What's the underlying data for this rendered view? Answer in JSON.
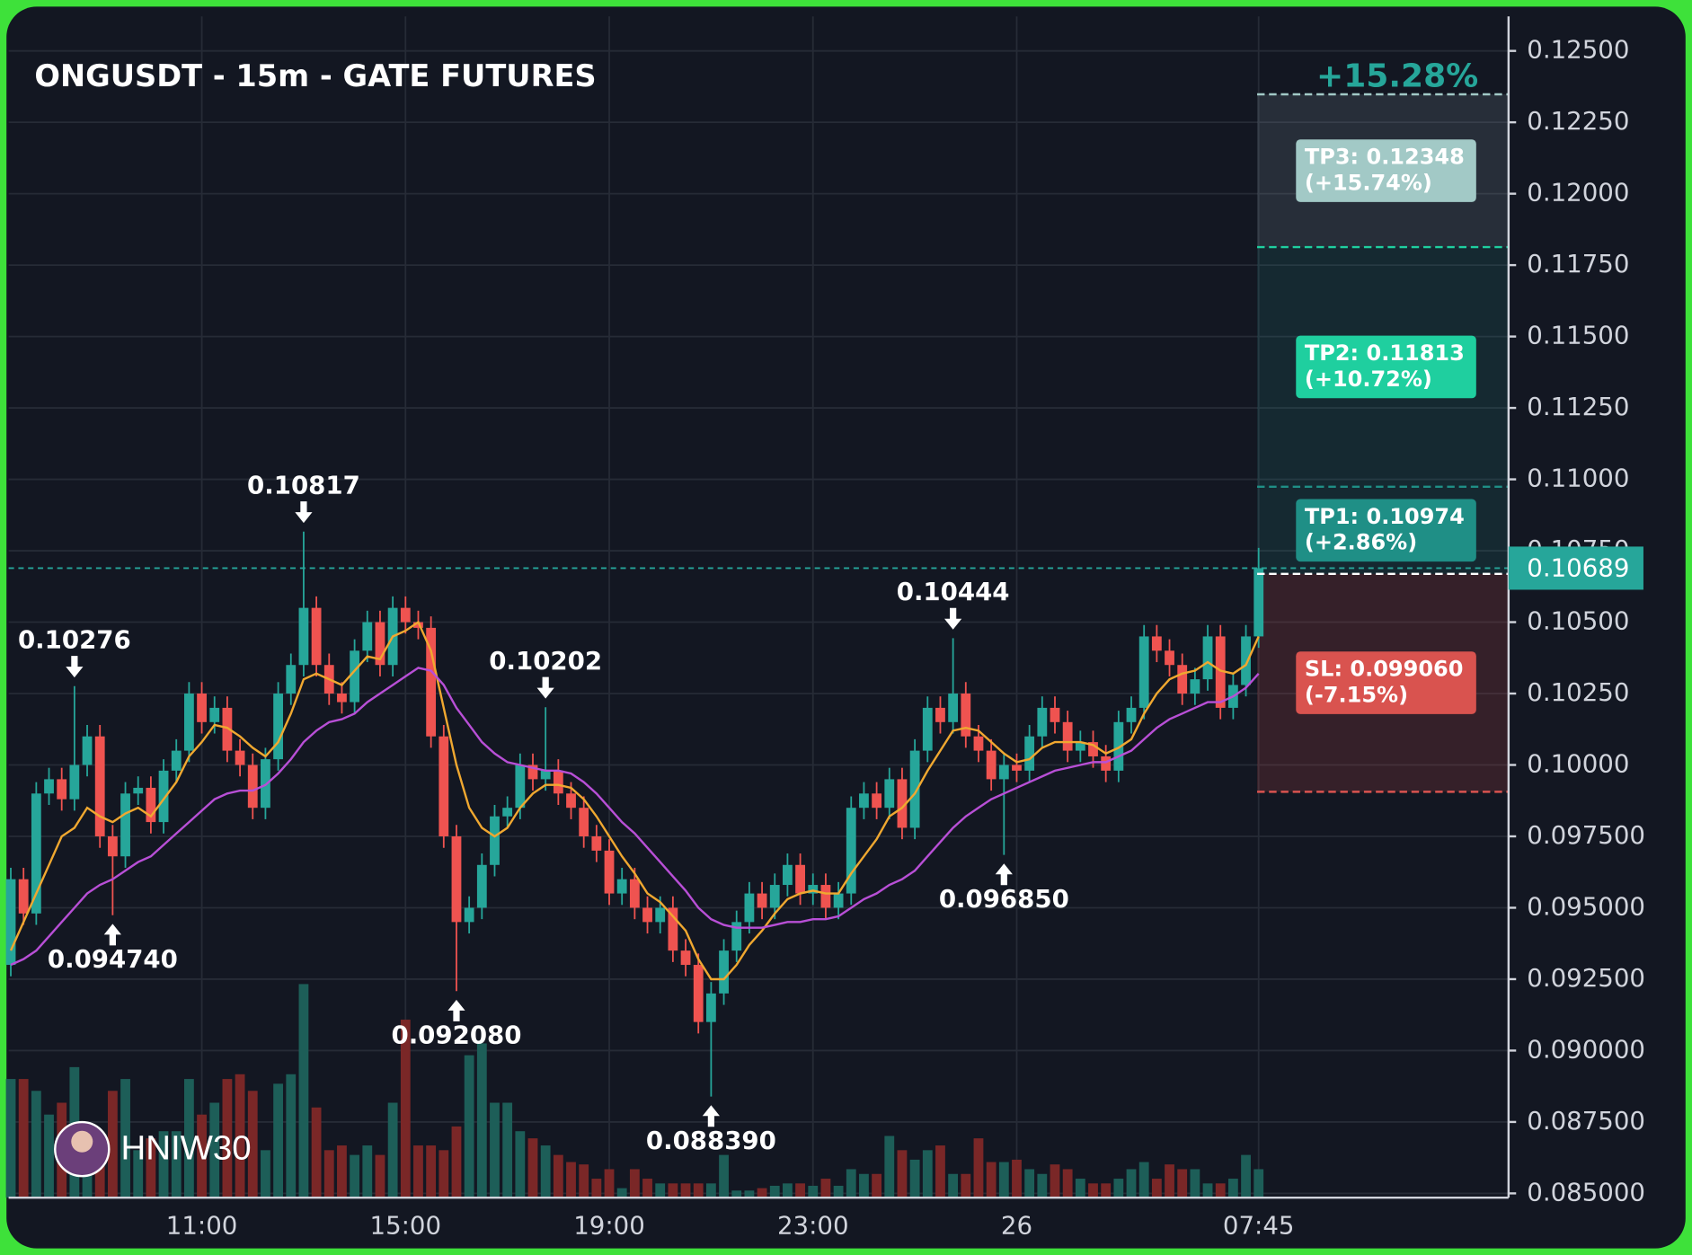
{
  "chart_data": {
    "type": "candlestick",
    "title": "ONGUSDT - 15m - GATE FUTURES",
    "watermark": "HNIW30",
    "categories": [
      null,
      null,
      null,
      null,
      null,
      null,
      null,
      null,
      null,
      null,
      null,
      null,
      null,
      null,
      null,
      "11:00",
      null,
      null,
      null,
      null,
      null,
      null,
      null,
      null,
      null,
      null,
      null,
      null,
      null,
      null,
      null,
      "15:00",
      null,
      null,
      null,
      null,
      null,
      null,
      null,
      null,
      null,
      null,
      null,
      null,
      null,
      null,
      null,
      "19:00",
      null,
      null,
      null,
      null,
      null,
      null,
      null,
      null,
      null,
      null,
      null,
      null,
      null,
      null,
      null,
      "23:00",
      null,
      null,
      null,
      null,
      null,
      null,
      null,
      null,
      null,
      null,
      null,
      null,
      null,
      null,
      null,
      "26",
      null,
      null,
      null,
      null,
      null,
      null,
      null,
      null,
      null,
      null,
      null,
      null,
      null,
      null,
      null,
      null,
      null,
      null,
      "07:45"
    ],
    "open": [
      0.093,
      0.096,
      0.0948,
      0.099,
      0.0995,
      0.0988,
      0.1,
      0.101,
      0.0975,
      0.0968,
      0.099,
      0.0992,
      0.098,
      0.0998,
      0.1005,
      0.1025,
      0.1015,
      0.102,
      0.1005,
      0.1,
      0.0985,
      0.1002,
      0.1025,
      0.1035,
      0.1055,
      0.1035,
      0.1025,
      0.1022,
      0.104,
      0.105,
      0.1035,
      0.1055,
      0.105,
      0.1048,
      0.101,
      0.0975,
      0.0945,
      0.095,
      0.0965,
      0.0982,
      0.0985,
      0.1,
      0.0995,
      0.0998,
      0.099,
      0.0985,
      0.0975,
      0.097,
      0.0955,
      0.096,
      0.095,
      0.0945,
      0.095,
      0.0935,
      0.093,
      0.091,
      0.092,
      0.0935,
      0.0945,
      0.0955,
      0.095,
      0.0958,
      0.0965,
      0.0955,
      0.0958,
      0.095,
      0.0955,
      0.0985,
      0.099,
      0.0985,
      0.0995,
      0.0978,
      0.1005,
      0.102,
      0.1015,
      0.1025,
      0.101,
      0.1005,
      0.0995,
      0.1,
      0.0998,
      0.101,
      0.102,
      0.1015,
      0.1005,
      0.1008,
      0.1003,
      0.0998,
      0.1015,
      0.102,
      0.1045,
      0.104,
      0.1035,
      0.1025,
      0.103,
      0.1045,
      0.102,
      0.1028,
      0.1045
    ],
    "high": [
      0.0964,
      0.0964,
      0.0994,
      0.0999,
      0.0999,
      0.10276,
      0.1014,
      0.1014,
      0.0979,
      0.0994,
      0.0996,
      0.0996,
      0.1002,
      0.1009,
      0.1029,
      0.1029,
      0.1024,
      0.1024,
      0.1009,
      0.1004,
      0.1006,
      0.1029,
      0.1039,
      0.10817,
      0.1059,
      0.1039,
      0.1029,
      0.1044,
      0.1054,
      0.1054,
      0.1059,
      0.1059,
      0.1054,
      0.1052,
      0.1014,
      0.0979,
      0.0954,
      0.0969,
      0.0986,
      0.0989,
      0.1004,
      0.1004,
      0.10202,
      0.1002,
      0.0994,
      0.0989,
      0.0979,
      0.0974,
      0.0964,
      0.0964,
      0.0954,
      0.0954,
      0.0954,
      0.0939,
      0.0934,
      0.0924,
      0.0939,
      0.0949,
      0.0959,
      0.0959,
      0.0962,
      0.0969,
      0.0969,
      0.0962,
      0.0962,
      0.0959,
      0.0989,
      0.0994,
      0.0994,
      0.0999,
      0.0999,
      0.1009,
      0.1024,
      0.1024,
      0.10444,
      0.1029,
      0.1014,
      0.1009,
      0.1004,
      0.1004,
      0.1014,
      0.1024,
      0.1024,
      0.1019,
      0.1012,
      0.1012,
      0.1007,
      0.1019,
      0.1024,
      0.1049,
      0.1049,
      0.1044,
      0.1039,
      0.1034,
      0.1049,
      0.1049,
      0.1032,
      0.1049,
      0.1076
    ],
    "low": [
      0.0926,
      0.0944,
      0.0944,
      0.0986,
      0.0984,
      0.0984,
      0.0996,
      0.0971,
      0.09474,
      0.0964,
      0.0986,
      0.0976,
      0.0976,
      0.0994,
      0.1001,
      0.1011,
      0.1011,
      0.1001,
      0.0996,
      0.0981,
      0.0981,
      0.0998,
      0.1021,
      0.1031,
      0.1031,
      0.1021,
      0.1018,
      0.1018,
      0.1036,
      0.1031,
      0.1031,
      0.1046,
      0.1044,
      0.1006,
      0.0971,
      0.09208,
      0.0941,
      0.0946,
      0.0961,
      0.0978,
      0.0981,
      0.0991,
      0.0991,
      0.0986,
      0.0981,
      0.0971,
      0.0966,
      0.0951,
      0.0951,
      0.0946,
      0.0941,
      0.0941,
      0.0931,
      0.0926,
      0.0906,
      0.08839,
      0.0916,
      0.0931,
      0.0941,
      0.0946,
      0.0946,
      0.0954,
      0.0951,
      0.0951,
      0.0946,
      0.0946,
      0.0951,
      0.0981,
      0.0981,
      0.0981,
      0.0974,
      0.0974,
      0.1001,
      0.1011,
      0.1011,
      0.1006,
      0.1001,
      0.0991,
      0.09685,
      0.0994,
      0.0994,
      0.1006,
      0.1011,
      0.1001,
      0.1001,
      0.0999,
      0.0994,
      0.0994,
      0.1011,
      0.1016,
      0.1036,
      0.1031,
      0.1021,
      0.1021,
      0.1026,
      0.1016,
      0.1016,
      0.1024,
      0.1041
    ],
    "close": [
      0.096,
      0.0948,
      0.099,
      0.0995,
      0.0988,
      0.1,
      0.101,
      0.0975,
      0.0968,
      0.099,
      0.0992,
      0.098,
      0.0998,
      0.1005,
      0.1025,
      0.1015,
      0.102,
      0.1005,
      0.1,
      0.0985,
      0.1002,
      0.1025,
      0.1035,
      0.1055,
      0.1035,
      0.1025,
      0.1022,
      0.104,
      0.105,
      0.1035,
      0.1055,
      0.105,
      0.1048,
      0.101,
      0.0975,
      0.0945,
      0.095,
      0.0965,
      0.0982,
      0.0985,
      0.1,
      0.0995,
      0.0998,
      0.099,
      0.0985,
      0.0975,
      0.097,
      0.0955,
      0.096,
      0.095,
      0.0945,
      0.095,
      0.0935,
      0.093,
      0.091,
      0.092,
      0.0935,
      0.0945,
      0.0955,
      0.095,
      0.0958,
      0.0965,
      0.0955,
      0.0958,
      0.095,
      0.0955,
      0.0985,
      0.099,
      0.0985,
      0.0995,
      0.0978,
      0.1005,
      0.102,
      0.1015,
      0.1025,
      0.101,
      0.1005,
      0.0995,
      0.1,
      0.0998,
      0.101,
      0.102,
      0.1015,
      0.1005,
      0.1008,
      0.1003,
      0.0998,
      0.1015,
      0.102,
      0.1045,
      0.104,
      0.1035,
      0.1025,
      0.103,
      0.1045,
      0.102,
      0.1028,
      0.1045,
      0.10689
    ],
    "up_color": "#26a69a",
    "down_color": "#ef5350",
    "lines": [
      {
        "color": "#f0a830",
        "values": [
          0.0935,
          0.0945,
          0.0955,
          0.0965,
          0.0975,
          0.0978,
          0.0985,
          0.0982,
          0.098,
          0.0983,
          0.0985,
          0.0982,
          0.0988,
          0.0994,
          0.1003,
          0.1008,
          0.1014,
          0.1013,
          0.101,
          0.1006,
          0.1003,
          0.1008,
          0.1018,
          0.103,
          0.1032,
          0.103,
          0.1028,
          0.1033,
          0.1038,
          0.1037,
          0.1045,
          0.1047,
          0.105,
          0.104,
          0.102,
          0.1,
          0.0985,
          0.0978,
          0.0975,
          0.0978,
          0.0985,
          0.099,
          0.0993,
          0.0993,
          0.0992,
          0.0988,
          0.0982,
          0.0975,
          0.0968,
          0.0962,
          0.0955,
          0.0952,
          0.0947,
          0.0942,
          0.0932,
          0.0925,
          0.0925,
          0.093,
          0.0937,
          0.0942,
          0.0948,
          0.0953,
          0.0955,
          0.0956,
          0.0955,
          0.0955,
          0.0962,
          0.0968,
          0.0974,
          0.0982,
          0.0985,
          0.099,
          0.0998,
          0.1005,
          0.1012,
          0.1013,
          0.1012,
          0.1008,
          0.1004,
          0.1001,
          0.1002,
          0.1006,
          0.1008,
          0.1008,
          0.1008,
          0.1007,
          0.1004,
          0.1006,
          0.1009,
          0.1018,
          0.1025,
          0.103,
          0.1032,
          0.1033,
          0.1036,
          0.1033,
          0.1032,
          0.1035,
          0.1045
        ]
      },
      {
        "color": "#b84fd6",
        "values": [
          0.093,
          0.0932,
          0.0935,
          0.094,
          0.0945,
          0.095,
          0.0955,
          0.0958,
          0.096,
          0.0963,
          0.0966,
          0.0968,
          0.0972,
          0.0976,
          0.098,
          0.0984,
          0.0988,
          0.099,
          0.0991,
          0.0991,
          0.0993,
          0.0997,
          0.1002,
          0.1008,
          0.1012,
          0.1015,
          0.1016,
          0.1018,
          0.1022,
          0.1025,
          0.1028,
          0.1031,
          0.1034,
          0.1033,
          0.1028,
          0.102,
          0.1014,
          0.1008,
          0.1004,
          0.1001,
          0.1,
          0.0999,
          0.0998,
          0.0998,
          0.0997,
          0.0994,
          0.099,
          0.0985,
          0.098,
          0.0976,
          0.0971,
          0.0966,
          0.0961,
          0.0956,
          0.095,
          0.0946,
          0.0944,
          0.0943,
          0.0943,
          0.0943,
          0.0944,
          0.0945,
          0.0945,
          0.0946,
          0.0946,
          0.0947,
          0.095,
          0.0953,
          0.0955,
          0.0958,
          0.096,
          0.0963,
          0.0968,
          0.0973,
          0.0978,
          0.0982,
          0.0985,
          0.0988,
          0.099,
          0.0992,
          0.0994,
          0.0996,
          0.0998,
          0.0999,
          0.1,
          0.1001,
          0.1001,
          0.1003,
          0.1005,
          0.1009,
          0.1013,
          0.1016,
          0.1018,
          0.102,
          0.1022,
          0.1022,
          0.1024,
          0.1027,
          0.1032
        ]
      }
    ],
    "volume": [
      50,
      50,
      45,
      35,
      40,
      55,
      30,
      25,
      45,
      50,
      20,
      25,
      28,
      28,
      50,
      35,
      40,
      50,
      52,
      45,
      20,
      48,
      52,
      90,
      38,
      20,
      22,
      18,
      22,
      18,
      40,
      75,
      22,
      22,
      20,
      30,
      60,
      65,
      40,
      40,
      28,
      25,
      22,
      18,
      15,
      14,
      8,
      12,
      4,
      12,
      8,
      6,
      6,
      6,
      6,
      6,
      18,
      3,
      3,
      4,
      5,
      6,
      6,
      5,
      8,
      5,
      12,
      10,
      10,
      26,
      20,
      16,
      20,
      22,
      10,
      10,
      25,
      15,
      15,
      16,
      12,
      10,
      14,
      12,
      8,
      6,
      6,
      8,
      12,
      15,
      8,
      14,
      12,
      12,
      6,
      6,
      8,
      18,
      12
    ],
    "volume_lim": [
      0,
      100
    ],
    "volume_up_color": "#1d5e58",
    "volume_down_color": "#7a2727",
    "ylim": [
      0.08485,
      0.12621
    ],
    "yticks": [
      {
        "value": 0.085,
        "label": "0.085000"
      },
      {
        "value": 0.0875,
        "label": "0.087500"
      },
      {
        "value": 0.09,
        "label": "0.090000"
      },
      {
        "value": 0.0925,
        "label": "0.092500"
      },
      {
        "value": 0.095,
        "label": "0.095000"
      },
      {
        "value": 0.0975,
        "label": "0.097500"
      },
      {
        "value": 0.1,
        "label": "0.10000"
      },
      {
        "value": 0.1025,
        "label": "0.10250"
      },
      {
        "value": 0.105,
        "label": "0.10500"
      },
      {
        "value": 0.1075,
        "label": "0.10750"
      },
      {
        "value": 0.11,
        "label": "0.11000"
      },
      {
        "value": 0.1125,
        "label": "0.11250"
      },
      {
        "value": 0.115,
        "label": "0.11500"
      },
      {
        "value": 0.1175,
        "label": "0.11750"
      },
      {
        "value": 0.12,
        "label": "0.12000"
      },
      {
        "value": 0.1225,
        "label": "0.12250"
      },
      {
        "value": 0.125,
        "label": "0.12500"
      }
    ],
    "grid": true,
    "last_price": 0.10689,
    "annotations": [
      {
        "value": 0.10276,
        "index": 5,
        "side": "above"
      },
      {
        "value": 0.09474,
        "label": "0.094740",
        "index": 8,
        "side": "below"
      },
      {
        "value": 0.10817,
        "index": 23,
        "side": "above"
      },
      {
        "value": 0.09208,
        "label": "0.092080",
        "index": 35,
        "side": "below"
      },
      {
        "value": 0.10202,
        "index": 42,
        "side": "above"
      },
      {
        "value": 0.08839,
        "label": "0.088390",
        "index": 55,
        "side": "below"
      },
      {
        "value": 0.10444,
        "index": 74,
        "side": "above"
      },
      {
        "value": 0.09685,
        "label": "0.096850",
        "index": 78,
        "side": "below"
      }
    ],
    "position": {
      "total": "+15.28%",
      "entry": 0.10669,
      "levels": [
        {
          "price": 0.12348,
          "text": [
            "TP3: 0.12348",
            "(+15.74%)"
          ],
          "color": "#a2c9c6",
          "zone_color": "rgba(150,170,180,0.16)"
        },
        {
          "price": 0.11813,
          "text": [
            "TP2: 0.11813",
            "(+10.72%)"
          ],
          "color": "#1fcf9f",
          "zone_color": "rgba(38,166,154,0.13)"
        },
        {
          "price": 0.10974,
          "text": [
            "TP1: 0.10974",
            "(+2.86%)"
          ],
          "color": "#1f8f86",
          "zone_color": "rgba(38,166,154,0.13)"
        },
        {
          "price": 0.09906,
          "text": [
            "SL: 0.099060",
            "(-7.15%)"
          ],
          "color": "#d9534f",
          "zone_color": "rgba(239,83,80,0.16)"
        }
      ]
    }
  }
}
